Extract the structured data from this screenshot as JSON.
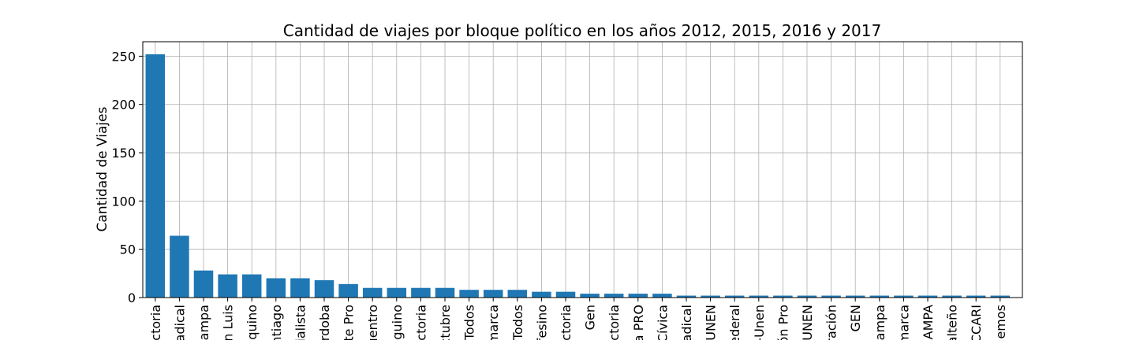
{
  "chart_data": {
    "type": "bar",
    "title": "Cantidad de viajes por bloque político en los años 2012, 2015, 2016 y 2017",
    "xlabel": "",
    "ylabel": "Cantidad de Viajes",
    "ylim": [
      0,
      265
    ],
    "yticks": [
      0,
      50,
      100,
      150,
      200,
      250
    ],
    "grid": true,
    "bar_color": "#1f77b4",
    "categories": [
      "ctoria",
      "adical",
      "ampa",
      "n Luis",
      "quino",
      "ntiago",
      "ialista",
      "rdoba",
      "te Pro",
      "uentro",
      "guino",
      "ctoria",
      "ctubre",
      "Todos",
      "marca",
      "Todos",
      "fesino",
      "ctoria",
      "Gen",
      "ctoria",
      "a PRO",
      "Cívica",
      "adical",
      "UNEN",
      "ederal",
      "-Unen",
      "ón Pro",
      "UNEN",
      "ración",
      "GEN",
      "ampa",
      "marca",
      "AMPA",
      "alteño",
      "CCARI",
      "iemos"
    ],
    "values": [
      252,
      64,
      28,
      24,
      24,
      20,
      20,
      18,
      14,
      10,
      10,
      10,
      10,
      8,
      8,
      8,
      6,
      6,
      4,
      4,
      4,
      4,
      2,
      2,
      2,
      2,
      2,
      2,
      2,
      2,
      2,
      2,
      2,
      2,
      2,
      2
    ]
  }
}
